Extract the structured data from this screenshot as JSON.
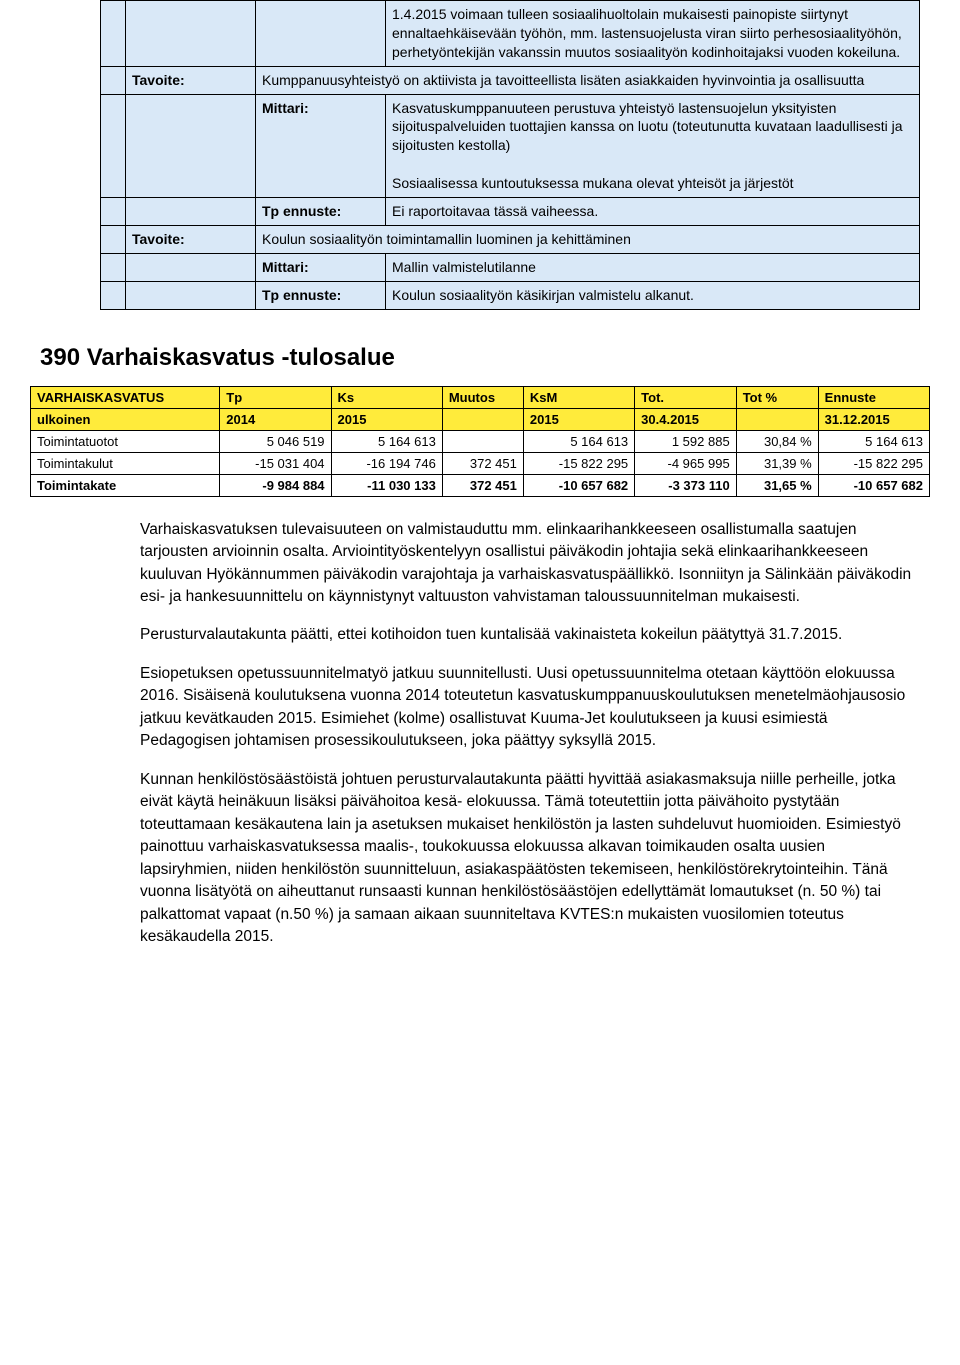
{
  "goalTable": {
    "bg_color": "#d9e8f7",
    "border_color": "#000000",
    "rows": [
      {
        "label": "",
        "value": "1.4.2015 voimaan tulleen sosiaalihuoltolain mukaisesti painopiste siirtynyt ennaltaehkäisevään työhön, mm. lastensuojelusta viran siirto perhesosiaalityöhön, perhetyöntekijän vakanssin muutos sosiaalityön kodinhoitajaksi vuoden kokeiluna."
      },
      {
        "label": "Tavoite:",
        "value": "Kumppanuusyhteistyö on aktiivista ja tavoitteellista lisäten asiakkaiden hyvinvointia ja osallisuutta"
      },
      {
        "label": "Mittari:",
        "value": "Kasvatuskumppanuuteen perustuva yhteistyö lastensuojelun yksityisten sijoituspalveluiden tuottajien kanssa on luotu (toteutunutta kuvataan laadullisesti ja sijoitusten kestolla)\n\nSosiaalisessa kuntoutuksessa mukana olevat yhteisöt ja järjestöt"
      },
      {
        "label": "Tp ennuste:",
        "value": "Ei raportoitavaa tässä vaiheessa."
      },
      {
        "label": "Tavoite:",
        "value": "Koulun sosiaalityön toimintamallin luominen ja kehittäminen"
      },
      {
        "label": "Mittari:",
        "value": "Mallin valmistelutilanne"
      },
      {
        "label": "Tp ennuste:",
        "value": "Koulun sosiaalityön käsikirjan valmistelu alkanut."
      }
    ]
  },
  "sectionTitle": "390 Varhaiskasvatus -tulosalue",
  "finTable": {
    "header_bg": "#ffeb3b",
    "title_top": "VARHAISKASVATUS",
    "title_bot": "ulkoinen",
    "cols": [
      {
        "top": "Tp",
        "bot": "2014"
      },
      {
        "top": "Ks",
        "bot": "2015"
      },
      {
        "top": "Muutos",
        "bot": ""
      },
      {
        "top": "KsM",
        "bot": "2015"
      },
      {
        "top": "Tot.",
        "bot": "30.4.2015"
      },
      {
        "top": "Tot %",
        "bot": ""
      },
      {
        "top": "Ennuste",
        "bot": "31.12.2015"
      }
    ],
    "rows": [
      {
        "name": "Toimintatuotot",
        "vals": [
          "5 046 519",
          "5 164 613",
          "",
          "5 164 613",
          "1 592 885",
          "30,84 %",
          "5 164 613"
        ],
        "bold": false
      },
      {
        "name": "Toimintakulut",
        "vals": [
          "-15 031 404",
          "-16 194 746",
          "372 451",
          "-15 822 295",
          "-4 965 995",
          "31,39 %",
          "-15 822 295"
        ],
        "bold": false
      },
      {
        "name": "Toimintakate",
        "vals": [
          "-9 984 884",
          "-11 030 133",
          "372 451",
          "-10 657 682",
          "-3 373 110",
          "31,65 %",
          "-10 657 682"
        ],
        "bold": true
      }
    ]
  },
  "paragraphs": [
    "Varhaiskasvatuksen tulevaisuuteen on valmistauduttu mm. elinkaarihankkeeseen osallistumalla saatujen tarjousten arvioinnin osalta. Arviointityöskentelyyn osallistui päiväkodin johtajia sekä elinkaarihankkeeseen kuuluvan Hyökännummen päiväkodin varajohtaja ja varhaiskasvatuspäällikkö. Isonniityn ja Sälinkään päiväkodin esi- ja hankesuunnittelu on käynnistynyt valtuuston vahvistaman taloussuunnitelman mukaisesti.",
    "Perusturvalautakunta päätti, ettei kotihoidon tuen kuntalisää vakinaisteta kokeilun päätyttyä 31.7.2015.",
    "Esiopetuksen opetussuunnitelmatyö jatkuu suunnitellusti. Uusi opetussuunnitelma otetaan käyttöön elokuussa 2016. Sisäisenä koulutuksena vuonna 2014 toteutetun kasvatuskumppanuuskoulutuksen menetelmäohjausosio jatkuu kevätkauden 2015. Esimiehet (kolme) osallistuvat Kuuma-Jet koulutukseen ja kuusi esimiestä Pedagogisen johtamisen prosessikoulutukseen, joka päättyy syksyllä 2015.",
    "Kunnan henkilöstösäästöistä johtuen perusturvalautakunta päätti hyvittää asiakasmaksuja niille perheille, jotka eivät käytä heinäkuun lisäksi päivähoitoa kesä- elokuussa. Tämä toteutettiin jotta päivähoito pystytään toteuttamaan kesäkautena lain ja asetuksen mukaiset henkilöstön ja lasten suhdeluvut huomioiden. Esimiestyö painottuu varhaiskasvatuksessa maalis-, toukokuussa elokuussa alkavan toimikauden osalta uusien lapsiryhmien, niiden henkilöstön suunnitteluun, asiakaspäätösten tekemiseen, henkilöstörekrytointeihin. Tänä vuonna lisätyötä on aiheuttanut runsaasti kunnan henkilöstösäästöjen edellyttämät lomautukset (n. 50 %) tai palkattomat vapaat (n.50 %) ja samaan aikaan suunniteltava KVTES:n mukaisten vuosilomien toteutus kesäkaudella 2015."
  ]
}
